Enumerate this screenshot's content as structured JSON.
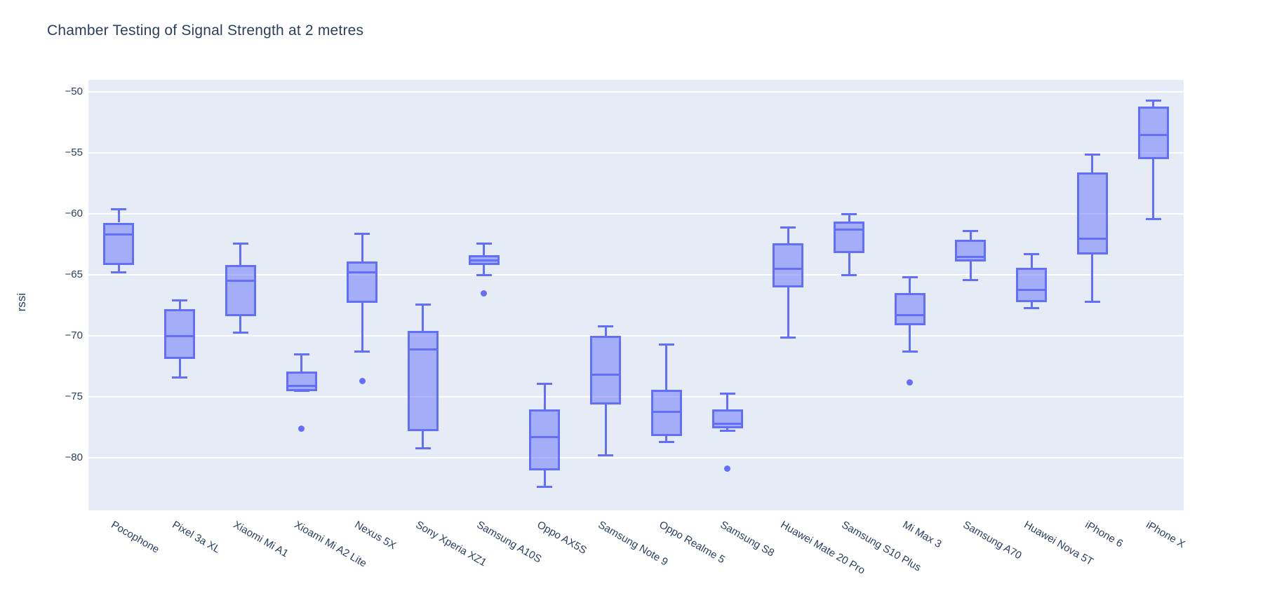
{
  "chart_data": {
    "type": "box",
    "title": "Chamber Testing of Signal Strength at 2 metres",
    "xlabel": "",
    "ylabel": "rssi",
    "ylim": [
      -84.3,
      -49.0
    ],
    "yticks": [
      -50,
      -55,
      -60,
      -65,
      -70,
      -75,
      -80
    ],
    "grid": true,
    "legend_position": "none",
    "colors": {
      "plot_bg": "#E5ECF6",
      "grid": "#FFFFFF",
      "text": "#2A3F5F",
      "box_line": "#636EFA",
      "box_fill": "rgba(99,110,250,0.5)"
    },
    "categories": [
      "Pocophone",
      "Pixel 3a XL",
      "Xiaomi Mi A1",
      "Xioami Mi A2 Lite",
      "Nexus 5X",
      "Sony Xperia XZ1",
      "Samsung A10S",
      "Oppo AX5S",
      "Samsung Note 9",
      "Oppo Realme 5",
      "Samsung S8",
      "Huawei Mate 20 Pro",
      "Samsung S10 Plus",
      "Mi Max 3",
      "Samsung A70",
      "Huawei Nova 5T",
      "iPhone 6",
      "iPhone X"
    ],
    "series": [
      {
        "name": "Pocophone",
        "low": -64.8,
        "q1": -64.2,
        "median": -61.7,
        "q3": -60.7,
        "high": -59.6,
        "outliers": []
      },
      {
        "name": "Pixel 3a XL",
        "low": -73.4,
        "q1": -71.9,
        "median": -70.0,
        "q3": -67.8,
        "high": -67.1,
        "outliers": []
      },
      {
        "name": "Xiaomi Mi A1",
        "low": -69.7,
        "q1": -68.4,
        "median": -65.5,
        "q3": -64.2,
        "high": -62.4,
        "outliers": []
      },
      {
        "name": "Xioami Mi A2 Lite",
        "low": -74.5,
        "q1": -74.5,
        "median": -74.1,
        "q3": -72.9,
        "high": -71.5,
        "outliers": [
          -77.6
        ]
      },
      {
        "name": "Nexus 5X",
        "low": -71.3,
        "q1": -67.3,
        "median": -64.8,
        "q3": -63.9,
        "high": -61.6,
        "outliers": [
          -73.7
        ]
      },
      {
        "name": "Sony Xperia XZ1",
        "low": -79.2,
        "q1": -77.8,
        "median": -71.1,
        "q3": -69.6,
        "high": -67.4,
        "outliers": []
      },
      {
        "name": "Samsung A10S",
        "low": -65.0,
        "q1": -64.2,
        "median": -63.8,
        "q3": -63.4,
        "high": -62.4,
        "outliers": [
          -66.5
        ]
      },
      {
        "name": "Oppo AX5S",
        "low": -82.4,
        "q1": -81.0,
        "median": -78.3,
        "q3": -76.0,
        "high": -73.9,
        "outliers": []
      },
      {
        "name": "Samsung Note 9",
        "low": -79.8,
        "q1": -75.6,
        "median": -73.2,
        "q3": -70.0,
        "high": -69.2,
        "outliers": []
      },
      {
        "name": "Oppo Realme 5",
        "low": -78.7,
        "q1": -78.2,
        "median": -76.2,
        "q3": -74.4,
        "high": -70.7,
        "outliers": []
      },
      {
        "name": "Samsung S8",
        "low": -77.8,
        "q1": -77.6,
        "median": -77.2,
        "q3": -76.0,
        "high": -74.7,
        "outliers": [
          -80.9
        ]
      },
      {
        "name": "Huawei Mate 20 Pro",
        "low": -70.1,
        "q1": -66.0,
        "median": -64.5,
        "q3": -62.4,
        "high": -61.1,
        "outliers": []
      },
      {
        "name": "Samsung S10 Plus",
        "low": -65.0,
        "q1": -63.2,
        "median": -61.3,
        "q3": -60.6,
        "high": -60.0,
        "outliers": []
      },
      {
        "name": "Mi Max 3",
        "low": -71.3,
        "q1": -69.1,
        "median": -68.3,
        "q3": -66.5,
        "high": -65.2,
        "outliers": [
          -73.8
        ]
      },
      {
        "name": "Samsung A70",
        "low": -65.4,
        "q1": -63.9,
        "median": -63.5,
        "q3": -62.1,
        "high": -61.4,
        "outliers": []
      },
      {
        "name": "Huawei Nova 5T",
        "low": -67.7,
        "q1": -67.2,
        "median": -66.2,
        "q3": -64.4,
        "high": -63.3,
        "outliers": []
      },
      {
        "name": "iPhone 6",
        "low": -67.2,
        "q1": -63.3,
        "median": -62.0,
        "q3": -56.6,
        "high": -55.1,
        "outliers": []
      },
      {
        "name": "iPhone X",
        "low": -60.4,
        "q1": -55.5,
        "median": -53.5,
        "q3": -51.2,
        "high": -50.7,
        "outliers": []
      }
    ]
  }
}
